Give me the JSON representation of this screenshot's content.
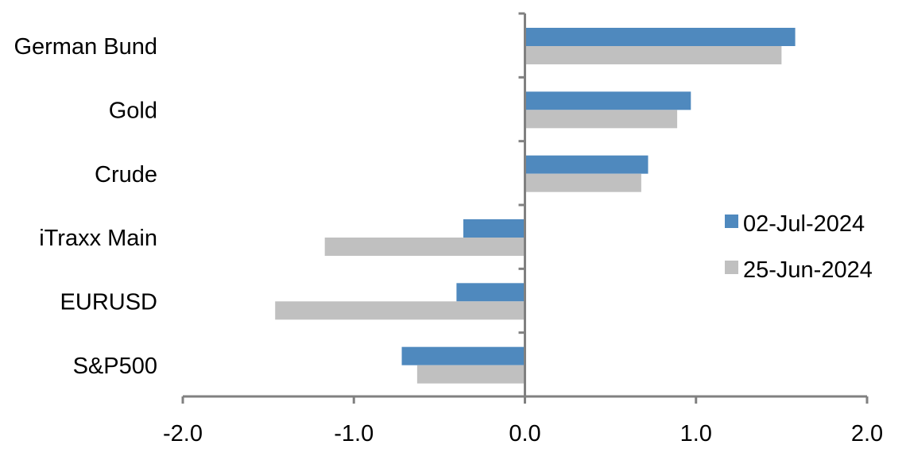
{
  "chart_data": {
    "type": "bar",
    "orientation": "horizontal",
    "categories": [
      "German Bund",
      "Gold",
      "Crude",
      "iTraxx Main",
      "EURUSD",
      "S&P500"
    ],
    "series": [
      {
        "name": "02-Jul-2024",
        "color": "#4f89be",
        "values": [
          1.58,
          0.97,
          0.72,
          -0.36,
          -0.4,
          -0.72
        ]
      },
      {
        "name": "25-Jun-2024",
        "color": "#c0c0c0",
        "values": [
          1.5,
          0.89,
          0.68,
          -1.17,
          -1.46,
          -0.63
        ]
      }
    ],
    "xlim": [
      -2.0,
      2.0
    ],
    "xticks": [
      "-2.0",
      "-1.0",
      "0.0",
      "1.0",
      "2.0"
    ],
    "xtick_values": [
      -2,
      -1,
      0,
      1,
      2
    ],
    "grid": false,
    "legend_position": "right"
  }
}
